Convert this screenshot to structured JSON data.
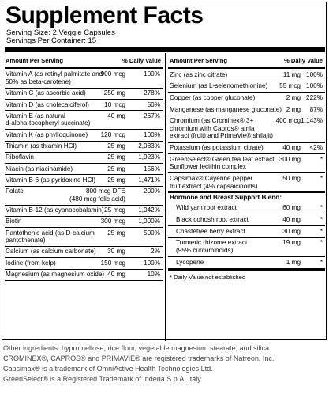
{
  "title": "Supplement Facts",
  "serving_size": "Serving Size: 2 Veggie Capsules",
  "servings_per_container": "Servings Per Container: 15",
  "left_header": {
    "amount": "Amount Per Serving",
    "dv": "% Daily Value"
  },
  "right_header": {
    "amount": "Amount Per Serving",
    "dv": "% Daily Value"
  },
  "left_rows": [
    {
      "name": [
        "Vitamin A (as retinyl palmitate and",
        "50% as beta-carotene)"
      ],
      "amount": "900 mcg",
      "dv": "100%"
    },
    {
      "name": [
        "Vitamin C (as ascorbic acid)"
      ],
      "amount": "250 mg",
      "dv": "278%"
    },
    {
      "name": [
        "Vitamin D (as cholecalciferol)"
      ],
      "amount": "10 mcg",
      "dv": "50%"
    },
    {
      "name": [
        "Vitamin E (as natural",
        "d-alpha-tocopheryl succinate)"
      ],
      "amount": "40 mg",
      "dv": "267%"
    },
    {
      "name": [
        "Vitamin K (as phylloquinone)"
      ],
      "amount": "120 mcg",
      "dv": "100%"
    },
    {
      "name": [
        "Thiamin (as thiamin HCl)"
      ],
      "amount": "25 mg",
      "dv": "2,083%"
    },
    {
      "name": [
        "Riboflavin"
      ],
      "amount": "25 mg",
      "dv": "1,923%"
    },
    {
      "name": [
        "Niacin (as niacinamide)"
      ],
      "amount": "25 mg",
      "dv": "156%"
    },
    {
      "name": [
        "Vitamin B-6 (as pyridoxine HCl)"
      ],
      "amount": "25 mg",
      "dv": "1,471%"
    },
    {
      "name": [
        "Folate"
      ],
      "amount": "800 mcg DFE",
      "amount2": "(480 mcg folic acid)",
      "dv": "200%"
    },
    {
      "name": [
        "Vitamin B-12 (as cyanocobalamin)"
      ],
      "amount": "25 mcg",
      "dv": "1,042%"
    },
    {
      "name": [
        "Biotin"
      ],
      "amount": "300 mcg",
      "dv": "1,000%"
    },
    {
      "name": [
        "Pantothenic acid (as D-calcium",
        "pantothenate)"
      ],
      "amount": "25 mg",
      "dv": "500%"
    },
    {
      "name": [
        "Calcium (as calcium carbonate)"
      ],
      "amount": "30 mg",
      "dv": "2%"
    },
    {
      "name": [
        "Iodine (from kelp)"
      ],
      "amount": "150 mcg",
      "dv": "100%"
    },
    {
      "name": [
        "Magnesium (as magnesium oxide)"
      ],
      "amount": "40 mg",
      "dv": "10%"
    }
  ],
  "right_rows": [
    {
      "name": [
        "Zinc (as zinc citrate)"
      ],
      "amount": "11 mg",
      "dv": "100%"
    },
    {
      "name": [
        "Selenium (as L-selenomethionine)"
      ],
      "amount": "55 mcg",
      "dv": "100%"
    },
    {
      "name": [
        "Copper (as copper gluconate)"
      ],
      "amount": "2 mg",
      "dv": "222%"
    },
    {
      "name": [
        "Manganese (as manganese gluconate)"
      ],
      "amount": "2 mg",
      "dv": "87%"
    },
    {
      "name": [
        "Chromium (as Crominex® 3+",
        "chromium with Capros® amla",
        "extract (fruit) and PrimaVie® shilajit)"
      ],
      "amount": "400 mcg",
      "dv": "1,143%"
    },
    {
      "name": [
        "Potassium (as potassium citrate)"
      ],
      "amount": "40 mg",
      "dv": "<2%"
    },
    {
      "name": [
        "GreenSelect® Green tea leaf extract",
        "Sunflower lecithin complex"
      ],
      "amount": "300 mg",
      "dv": "*"
    },
    {
      "name": [
        "Capsimax® Cayenne pepper",
        "fruit extract (4% capsaicinoids)"
      ],
      "amount": "50 mg",
      "dv": "*"
    }
  ],
  "blend_header": "Hormone and Breast Support Blend:",
  "blend_rows": [
    {
      "name": [
        "Wild yam root extract"
      ],
      "amount": "60 mg",
      "dv": "*"
    },
    {
      "name": [
        "Black cohosh root extract"
      ],
      "amount": "40 mg",
      "dv": "*"
    },
    {
      "name": [
        "Chastetree berry extract"
      ],
      "amount": "30 mg",
      "dv": "*"
    },
    {
      "name": [
        "Turmeric rhizome extract",
        "(95% curcuminoids)"
      ],
      "amount": "19 mg",
      "dv": "*"
    },
    {
      "name": [
        "Lycopene"
      ],
      "amount": "1 mg",
      "dv": "*"
    }
  ],
  "footnote": "* Daily Value not established",
  "other_ingredients": [
    "Other ingredients: hypromellose, rice flour, vegetable magnesium stearate, and silica.",
    "CROMINEX®, CAPROS® and PRIMAVIE® are registered trademarks of Natreon, Inc.",
    "Capsimax® is a trademark of OmniActive Health Technologies Ltd.",
    "GreenSelect® is a Registered Trademark of Indena S.p.A. Italy"
  ]
}
